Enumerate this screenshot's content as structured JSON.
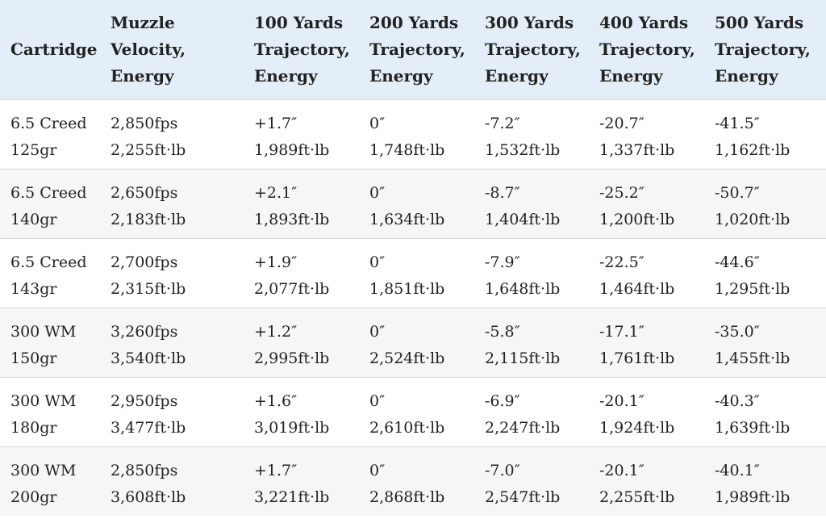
{
  "table": {
    "headers": [
      [
        "Cartridge"
      ],
      [
        "Muzzle",
        "Velocity,",
        "Energy"
      ],
      [
        "100 Yards",
        "Trajectory,",
        "Energy"
      ],
      [
        "200 Yards",
        "Trajectory,",
        "Energy"
      ],
      [
        "300 Yards",
        "Trajectory,",
        "Energy"
      ],
      [
        "400 Yards",
        "Trajectory,",
        "Energy"
      ],
      [
        "500 Yards",
        "Trajectory,",
        "Energy"
      ]
    ],
    "rows": [
      [
        [
          "6.5 Creed",
          "125gr"
        ],
        [
          "2,850fps",
          "2,255ft·lb"
        ],
        [
          "+1.7″",
          "1,989ft·lb"
        ],
        [
          "0″",
          "1,748ft·lb"
        ],
        [
          "-7.2″",
          "1,532ft·lb"
        ],
        [
          "-20.7″",
          "1,337ft·lb"
        ],
        [
          "-41.5″",
          "1,162ft·lb"
        ]
      ],
      [
        [
          "6.5 Creed",
          "140gr"
        ],
        [
          "2,650fps",
          "2,183ft·lb"
        ],
        [
          "+2.1″",
          "1,893ft·lb"
        ],
        [
          "0″",
          "1,634ft·lb"
        ],
        [
          "-8.7″",
          "1,404ft·lb"
        ],
        [
          "-25.2″",
          "1,200ft·lb"
        ],
        [
          "-50.7″",
          "1,020ft·lb"
        ]
      ],
      [
        [
          "6.5 Creed",
          "143gr"
        ],
        [
          "2,700fps",
          "2,315ft·lb"
        ],
        [
          "+1.9″",
          "2,077ft·lb"
        ],
        [
          "0″",
          "1,851ft·lb"
        ],
        [
          "-7.9″",
          "1,648ft·lb"
        ],
        [
          "-22.5″",
          "1,464ft·lb"
        ],
        [
          "-44.6″",
          "1,295ft·lb"
        ]
      ],
      [
        [
          "300 WM",
          "150gr"
        ],
        [
          "3,260fps",
          "3,540ft·lb"
        ],
        [
          "+1.2″",
          "2,995ft·lb"
        ],
        [
          "0″",
          "2,524ft·lb"
        ],
        [
          "-5.8″",
          "2,115ft·lb"
        ],
        [
          "-17.1″",
          "1,761ft·lb"
        ],
        [
          "-35.0″",
          "1,455ft·lb"
        ]
      ],
      [
        [
          "300 WM",
          "180gr"
        ],
        [
          "2,950fps",
          "3,477ft·lb"
        ],
        [
          "+1.6″",
          "3,019ft·lb"
        ],
        [
          "0″",
          "2,610ft·lb"
        ],
        [
          "-6.9″",
          "2,247ft·lb"
        ],
        [
          "-20.1″",
          "1,924ft·lb"
        ],
        [
          "-40.3″",
          "1,639ft·lb"
        ]
      ],
      [
        [
          "300 WM",
          "200gr"
        ],
        [
          "2,850fps",
          "3,608ft·lb"
        ],
        [
          "+1.7″",
          "3,221ft·lb"
        ],
        [
          "0″",
          "2,868ft·lb"
        ],
        [
          "-7.0″",
          "2,547ft·lb"
        ],
        [
          "-20.1″",
          "2,255ft·lb"
        ],
        [
          "-40.1″",
          "1,989ft·lb"
        ]
      ]
    ]
  },
  "colors": {
    "header_bg": "#e3eef8",
    "stripe_bg": "#f6f6f6",
    "row_bg": "#ffffff",
    "divider": "#d9d9d9"
  }
}
